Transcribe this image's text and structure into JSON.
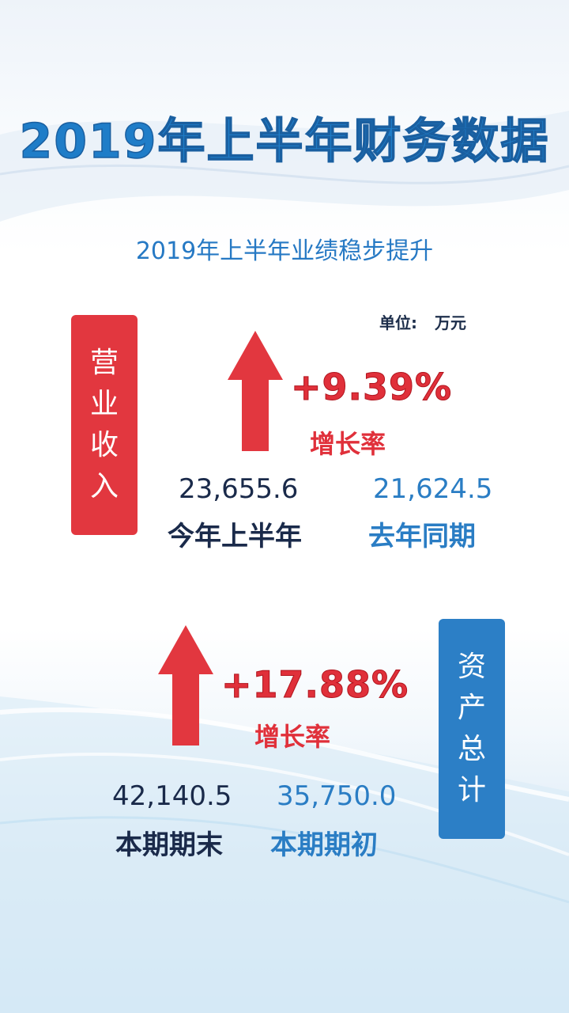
{
  "title": "2019年上半年财务数据",
  "subtitle": "2019年上半年业绩稳步提升",
  "unit": {
    "label": "单位:",
    "value": "万元"
  },
  "revenue": {
    "label_chars": [
      "营",
      "业",
      "收",
      "入"
    ],
    "growth": "+9.39%",
    "growth_label": "增长率",
    "current_value": "23,655.6",
    "current_label": "今年上半年",
    "previous_value": "21,624.5",
    "previous_label": "去年同期",
    "accent": "#e2373f"
  },
  "assets": {
    "label_chars": [
      "资",
      "产",
      "总",
      "计"
    ],
    "growth": "+17.88%",
    "growth_label": "增长率",
    "current_value": "42,140.5",
    "current_label": "本期期末",
    "previous_value": "35,750.0",
    "previous_label": "本期期初",
    "accent": "#2c7fc6"
  },
  "icons": {
    "arrow": "arrow-up-icon"
  }
}
